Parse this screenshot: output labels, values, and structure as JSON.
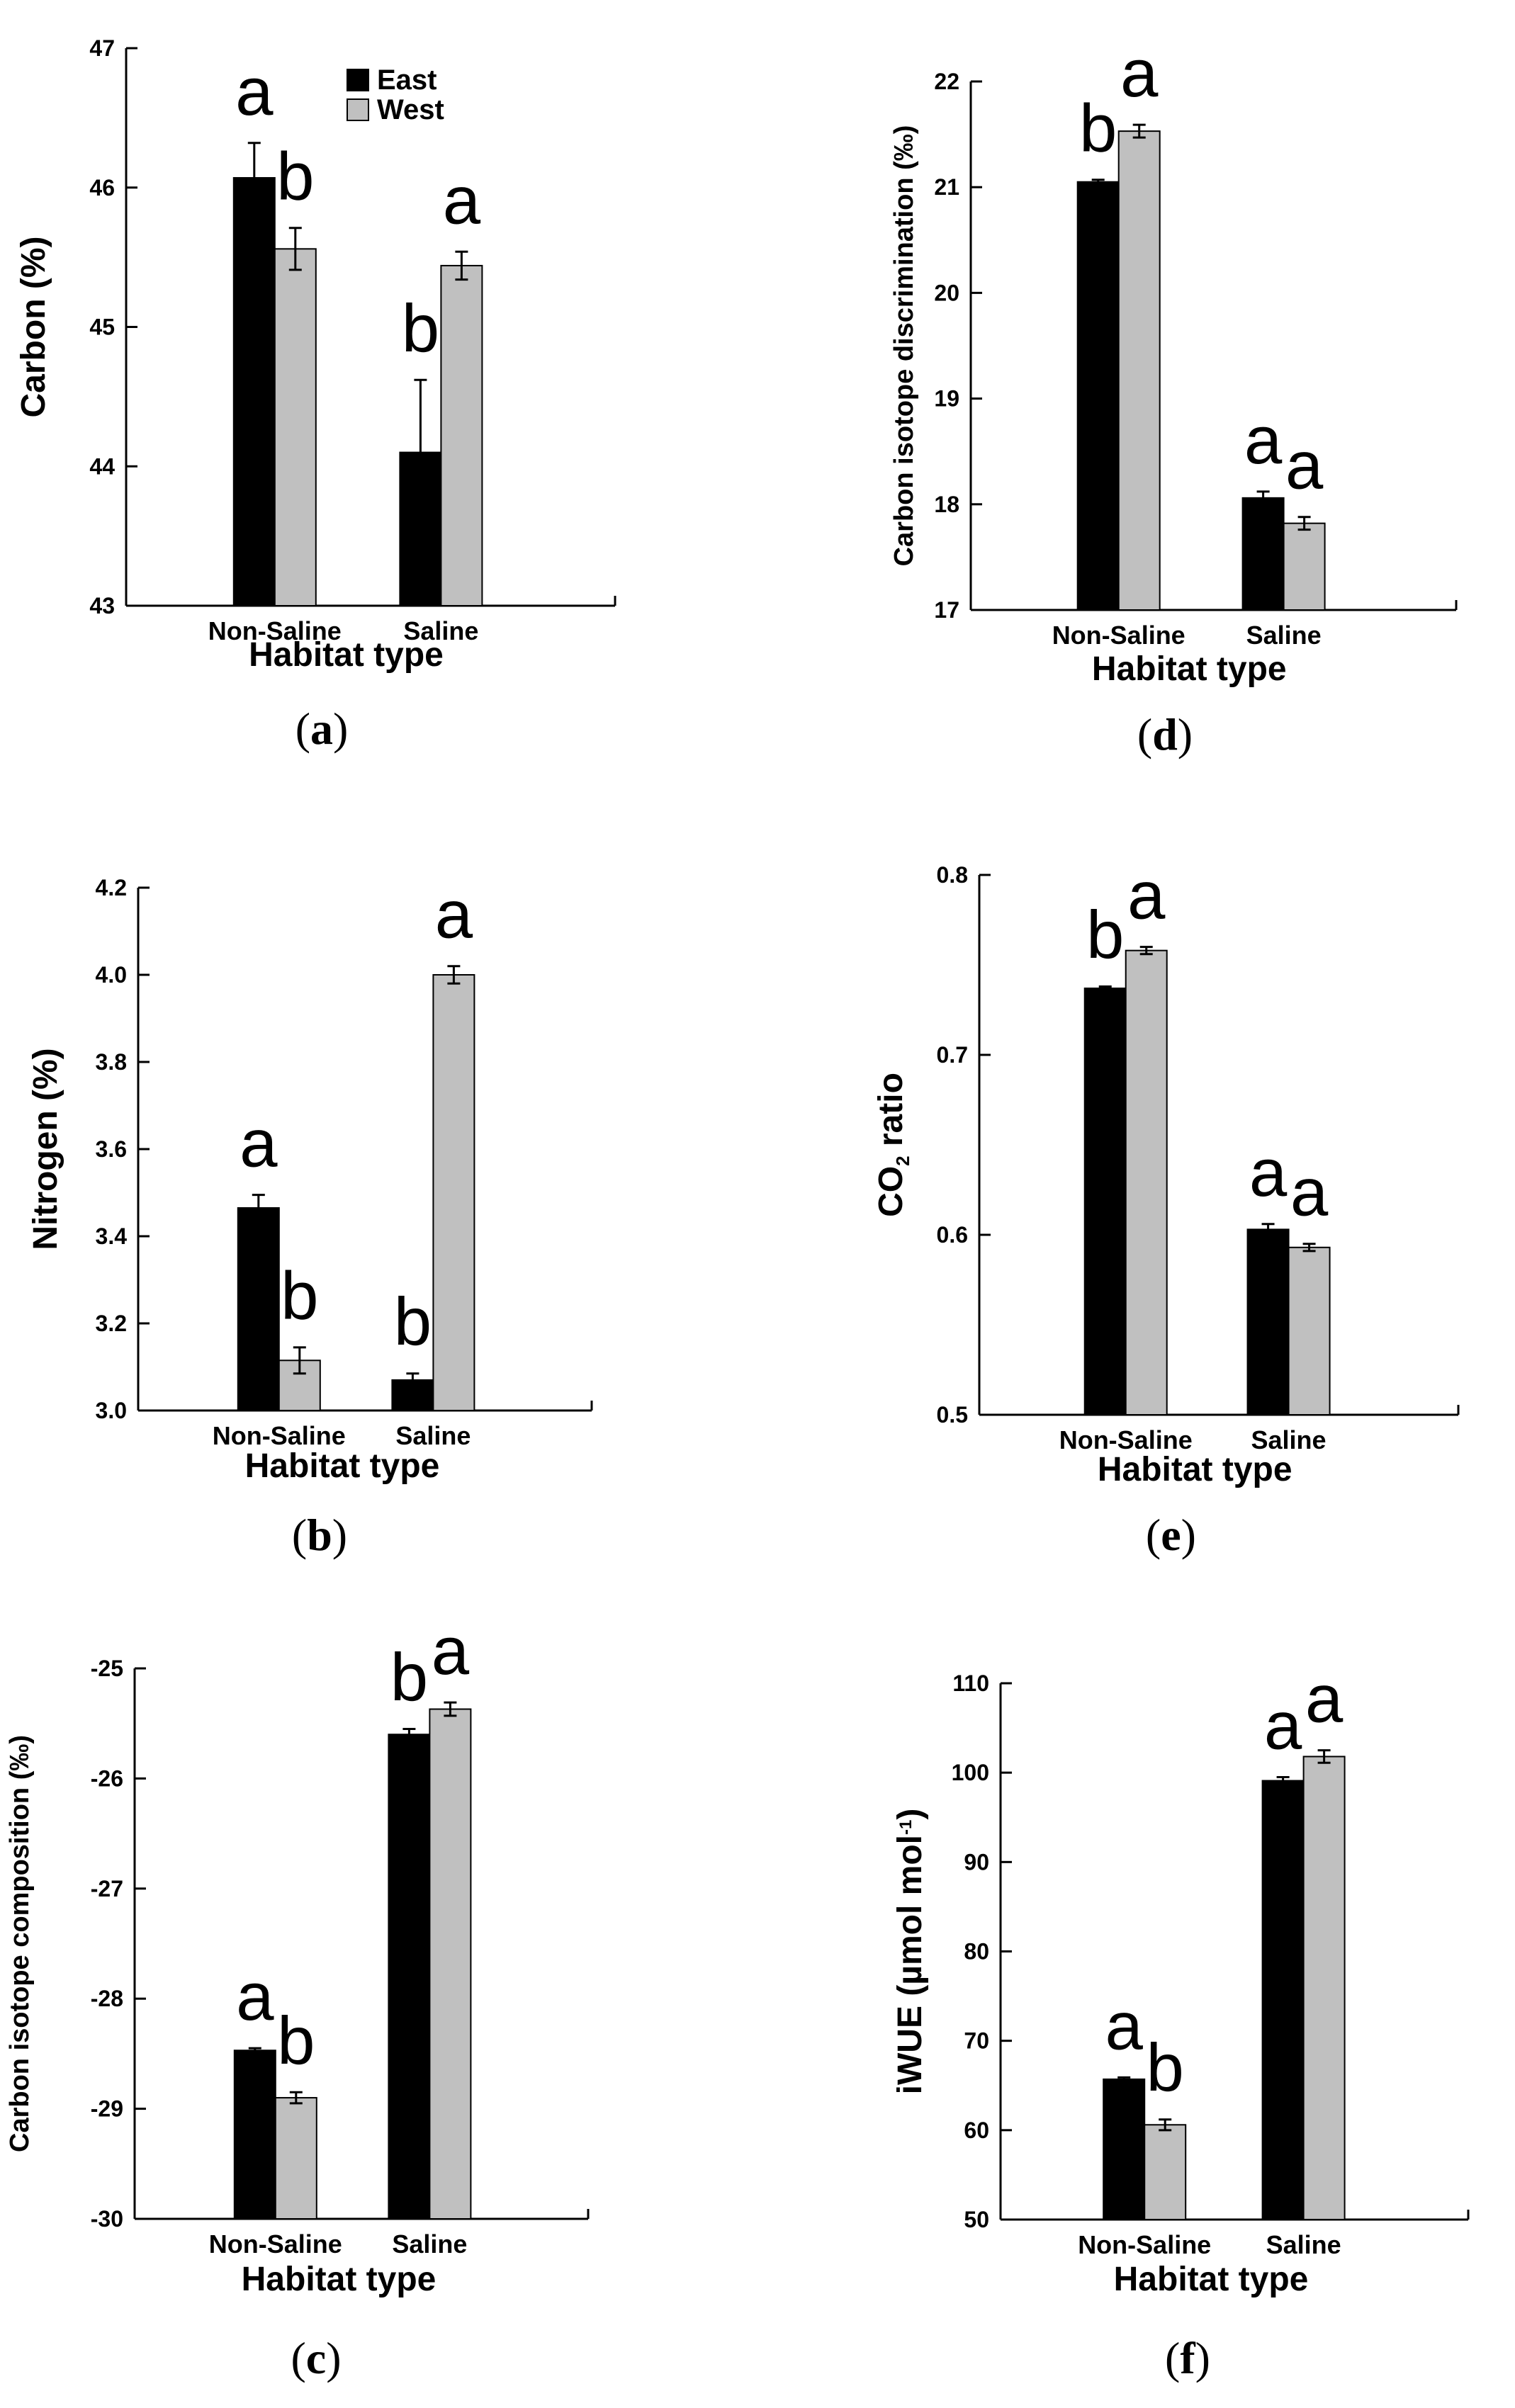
{
  "figure": {
    "legend": [
      {
        "name": "East",
        "color": "#000000"
      },
      {
        "name": "West",
        "color": "#c0c0c0"
      }
    ]
  },
  "chart_data": [
    {
      "panel": "a",
      "caption": "(a)",
      "type": "bar",
      "xlabel": "Habitat type",
      "ylabel": "Carbon (%)",
      "ylim": [
        43,
        47
      ],
      "yticks": [
        "43",
        "44",
        "45",
        "46",
        "47"
      ],
      "categories": [
        "Non-Saline",
        "Saline"
      ],
      "series": [
        {
          "name": "East",
          "values": [
            46.07,
            44.1
          ],
          "errors": [
            0.25,
            0.52
          ]
        },
        {
          "name": "West",
          "values": [
            45.56,
            45.44
          ],
          "errors": [
            0.15,
            0.1
          ]
        }
      ],
      "letters": [
        [
          "a",
          "b"
        ],
        [
          "b",
          "a"
        ]
      ],
      "legend_shown": true
    },
    {
      "panel": "b",
      "caption": "(b)",
      "type": "bar",
      "xlabel": "Habitat type",
      "ylabel": "Nitrogen (%)",
      "ylim": [
        3.0,
        4.2
      ],
      "yticks": [
        "3.0",
        "3.2",
        "3.4",
        "3.6",
        "3.8",
        "4.0",
        "4.2"
      ],
      "categories": [
        "Non-Saline",
        "Saline"
      ],
      "series": [
        {
          "name": "East",
          "values": [
            3.465,
            3.07
          ],
          "errors": [
            0.03,
            0.015
          ]
        },
        {
          "name": "West",
          "values": [
            3.115,
            4.0
          ],
          "errors": [
            0.03,
            0.02
          ]
        }
      ],
      "letters": [
        [
          "a",
          "b"
        ],
        [
          "b",
          "a"
        ]
      ]
    },
    {
      "panel": "c",
      "caption": "(c)",
      "type": "bar",
      "xlabel": "Habitat type",
      "ylabel": "Carbon isotope composition (‰)",
      "ylim": [
        -30,
        -25
      ],
      "yticks": [
        "-30",
        "-29",
        "-28",
        "-27",
        "-26",
        "-25"
      ],
      "categories": [
        "Non-Saline",
        "Saline"
      ],
      "series": [
        {
          "name": "East",
          "values": [
            -28.47,
            -25.6
          ],
          "errors": [
            0.02,
            0.05
          ]
        },
        {
          "name": "West",
          "values": [
            -28.9,
            -25.37
          ],
          "errors": [
            0.05,
            0.06
          ]
        }
      ],
      "letters": [
        [
          "a",
          "b"
        ],
        [
          "b",
          "a"
        ]
      ]
    },
    {
      "panel": "d",
      "caption": "(d)",
      "type": "bar",
      "xlabel": "Habitat type",
      "ylabel": "Carbon isotope discrimination (‰)",
      "ylim": [
        17,
        22
      ],
      "yticks": [
        "17",
        "18",
        "19",
        "20",
        "21",
        "22"
      ],
      "categories": [
        "Non-Saline",
        "Saline"
      ],
      "series": [
        {
          "name": "East",
          "values": [
            21.05,
            18.06
          ],
          "errors": [
            0.02,
            0.06
          ]
        },
        {
          "name": "West",
          "values": [
            21.53,
            17.82
          ],
          "errors": [
            0.06,
            0.06
          ]
        }
      ],
      "letters": [
        [
          "b",
          "a"
        ],
        [
          "a",
          "a"
        ]
      ]
    },
    {
      "panel": "e",
      "caption": "(e)",
      "type": "bar",
      "xlabel": "Habitat type",
      "ylabel": "CO2 ratio",
      "ylim": [
        0.5,
        0.8
      ],
      "yticks": [
        "0.5",
        "0.6",
        "0.7",
        "0.8"
      ],
      "categories": [
        "Non-Saline",
        "Saline"
      ],
      "series": [
        {
          "name": "East",
          "values": [
            0.737,
            0.603
          ],
          "errors": [
            0.001,
            0.003
          ]
        },
        {
          "name": "West",
          "values": [
            0.758,
            0.593
          ],
          "errors": [
            0.002,
            0.002
          ]
        }
      ],
      "letters": [
        [
          "b",
          "a"
        ],
        [
          "a",
          "a"
        ]
      ]
    },
    {
      "panel": "f",
      "caption": "(f)",
      "type": "bar",
      "xlabel": "Habitat type",
      "ylabel": "iWUE (µmol mol-1)",
      "ylim": [
        50,
        110
      ],
      "yticks": [
        "50",
        "60",
        "70",
        "80",
        "90",
        "100",
        "110"
      ],
      "categories": [
        "Non-Saline",
        "Saline"
      ],
      "series": [
        {
          "name": "East",
          "values": [
            65.7,
            99.1
          ],
          "errors": [
            0.2,
            0.4
          ]
        },
        {
          "name": "West",
          "values": [
            60.6,
            101.8
          ],
          "errors": [
            0.6,
            0.7
          ]
        }
      ],
      "letters": [
        [
          "a",
          "a"
        ],
        [
          "b",
          "a"
        ]
      ]
    }
  ]
}
